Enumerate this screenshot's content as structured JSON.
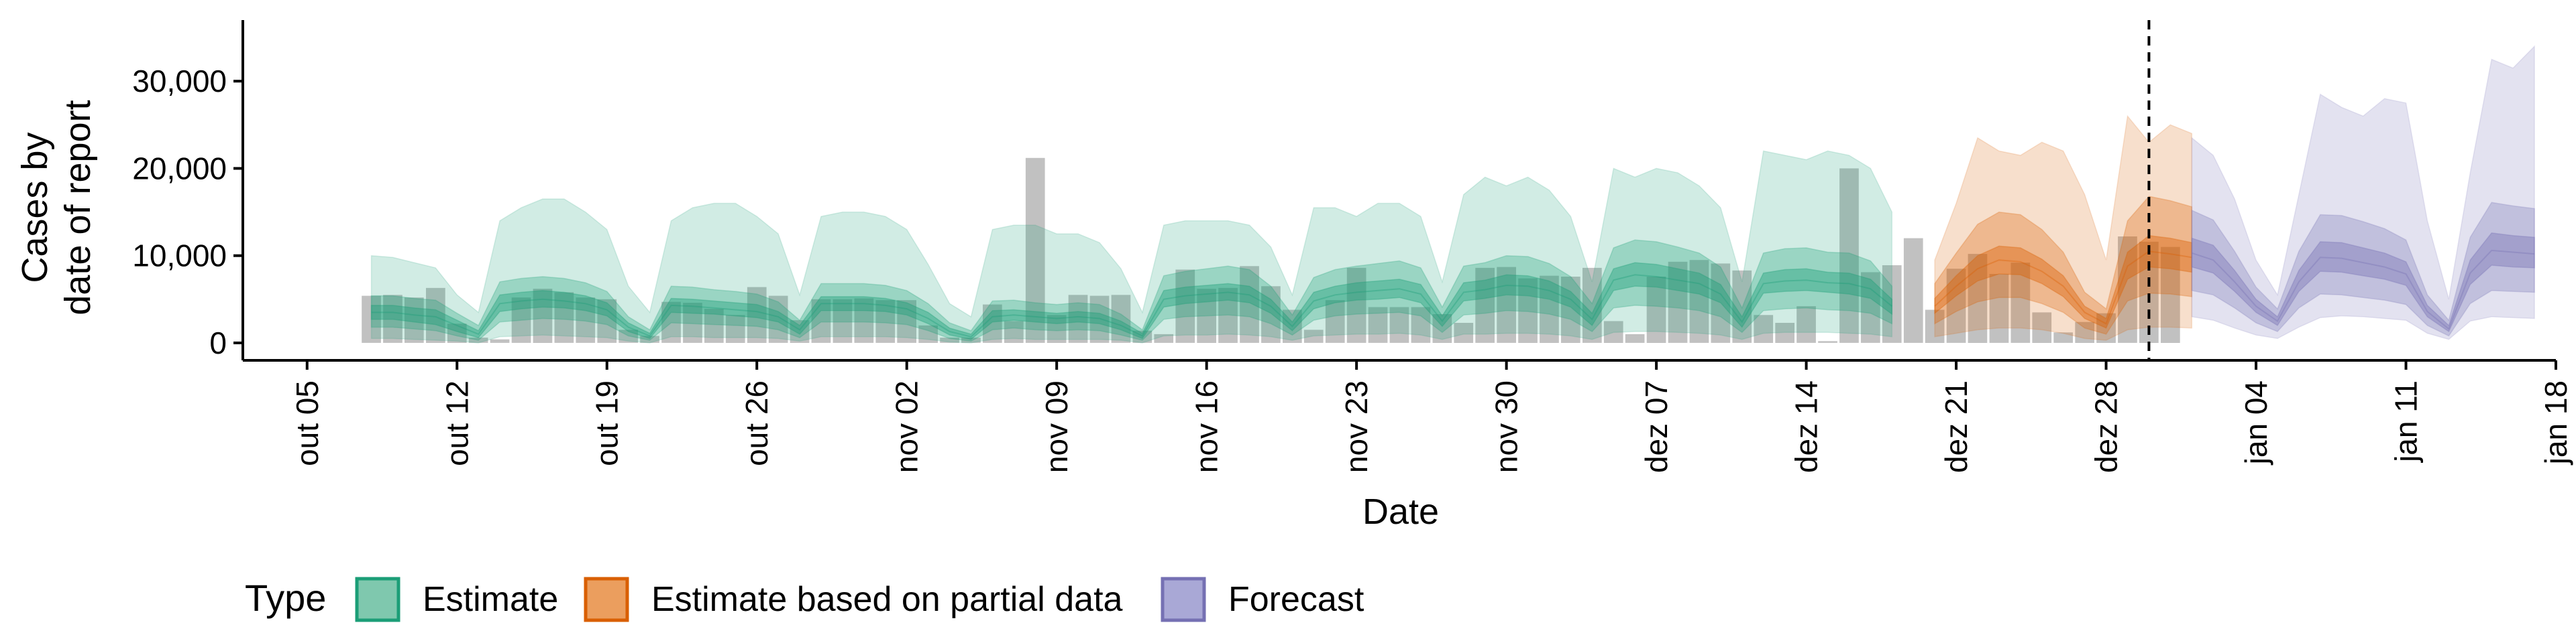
{
  "chart_data": {
    "type": "area",
    "xlabel": "Date",
    "ylabel_lines": [
      "Cases by",
      "date of report"
    ],
    "ylim": [
      -2000,
      37000
    ],
    "yticks": [
      0,
      10000,
      20000,
      30000
    ],
    "ytick_labels": [
      "0",
      "10,000",
      "20,000",
      "30,000"
    ],
    "xlim": [
      "2020-10-02",
      "2021-01-18"
    ],
    "xticks": [
      "2020-10-05",
      "2020-10-12",
      "2020-10-19",
      "2020-10-26",
      "2020-11-02",
      "2020-11-09",
      "2020-11-16",
      "2020-11-23",
      "2020-11-30",
      "2020-12-07",
      "2020-12-14",
      "2020-12-21",
      "2020-12-28",
      "2021-01-04",
      "2021-01-11",
      "2021-01-18"
    ],
    "xtick_labels": [
      "out 05",
      "out 12",
      "out 19",
      "out 26",
      "nov 02",
      "nov 09",
      "nov 16",
      "nov 23",
      "nov 30",
      "dez 07",
      "dez 14",
      "dez 21",
      "dez 28",
      "jan 04",
      "jan 11",
      "jan 18"
    ],
    "forecast_date": "2020-12-30",
    "grid": false,
    "legend": {
      "title": "Type",
      "position": "bottom",
      "items": [
        {
          "label": "Estimate",
          "fill": "#7fc8ae",
          "stroke": "#1b9e77"
        },
        {
          "label": "Estimate based on partial data",
          "fill": "#eb9e5e",
          "stroke": "#d95f02"
        },
        {
          "label": "Forecast",
          "fill": "#a9a8d6",
          "stroke": "#7570b3"
        }
      ]
    },
    "colors": {
      "Estimate": "#1b9e77",
      "Estimate based on partial data": "#d95f02",
      "Forecast": "#7570b3",
      "bars": "#a6a6a6"
    },
    "reported_cases": {
      "start_date": "2020-10-08",
      "values": [
        5400,
        5500,
        5200,
        6300,
        2200,
        600,
        400,
        5200,
        6200,
        5800,
        5200,
        5000,
        1500,
        800,
        4700,
        4600,
        3900,
        3200,
        6400,
        5400,
        2600,
        5000,
        5000,
        5100,
        4900,
        4900,
        2000,
        600,
        600,
        4400,
        2500,
        21200,
        3200,
        5500,
        5400,
        5500,
        1400,
        1000,
        8400,
        6200,
        6300,
        8800,
        6500,
        3800,
        1500,
        4900,
        8600,
        4100,
        4100,
        4100,
        3300,
        2300,
        8600,
        8700,
        7400,
        7700,
        7600,
        8600,
        2500,
        1000,
        7600,
        9300,
        9500,
        9100,
        8300,
        3200,
        2300,
        4200,
        200,
        20000,
        8100,
        8900,
        12000,
        3800,
        8500,
        10200,
        7900,
        9200,
        3500,
        1200,
        2400,
        3400,
        12200,
        11600,
        11000
      ]
    },
    "series": [
      {
        "name": "Estimate",
        "start_date": "2020-10-08",
        "median": [
          3500,
          3500,
          3200,
          3000,
          2000,
          1000,
          4500,
          4800,
          5000,
          4800,
          4500,
          3800,
          1800,
          800,
          4300,
          4200,
          4000,
          3800,
          3600,
          3000,
          1500,
          4500,
          4500,
          4500,
          4300,
          3900,
          2800,
          1300,
          700,
          3000,
          3200,
          3000,
          2800,
          3000,
          2800,
          2000,
          800,
          5000,
          5400,
          5600,
          5800,
          5500,
          4200,
          1900,
          4800,
          5500,
          5800,
          6000,
          6200,
          5600,
          2500,
          5800,
          6100,
          6600,
          6500,
          6000,
          5000,
          2700,
          7200,
          7800,
          7600,
          7200,
          6800,
          5600,
          2400,
          6800,
          7100,
          7200,
          6900,
          6800,
          6200,
          4200
        ],
        "lower50": [
          2700,
          2700,
          2400,
          2100,
          1300,
          600,
          3600,
          3900,
          4100,
          4000,
          3700,
          3100,
          1300,
          500,
          3500,
          3400,
          3300,
          3100,
          2900,
          2400,
          1000,
          3700,
          3700,
          3700,
          3600,
          3200,
          2200,
          900,
          400,
          2400,
          2600,
          2400,
          2200,
          2400,
          2200,
          1500,
          500,
          4100,
          4500,
          4700,
          4900,
          4600,
          3400,
          1400,
          3900,
          4600,
          4900,
          5000,
          5200,
          4600,
          1900,
          4800,
          5100,
          5500,
          5400,
          5000,
          4100,
          2000,
          6000,
          6500,
          6400,
          6000,
          5600,
          4600,
          1800,
          5700,
          5900,
          6000,
          5800,
          5600,
          5100,
          3300
        ],
        "upper50": [
          4300,
          4300,
          4000,
          3800,
          2600,
          1400,
          5500,
          5800,
          6000,
          5800,
          5400,
          4600,
          2300,
          1100,
          5100,
          5000,
          4800,
          4600,
          4400,
          3600,
          2000,
          5300,
          5300,
          5300,
          5100,
          4600,
          3500,
          1700,
          1000,
          3700,
          3800,
          3600,
          3400,
          3600,
          3400,
          2500,
          1100,
          6000,
          6400,
          6600,
          6800,
          6500,
          5000,
          2400,
          5800,
          6500,
          6900,
          7100,
          7300,
          6700,
          3100,
          6900,
          7200,
          7800,
          7700,
          7100,
          5900,
          3400,
          8500,
          9200,
          9000,
          8500,
          8000,
          6700,
          3000,
          8000,
          8400,
          8500,
          8100,
          8000,
          7300,
          5000
        ],
        "lower90": [
          1800,
          1800,
          1600,
          1400,
          800,
          300,
          2400,
          2600,
          2800,
          2700,
          2500,
          2100,
          800,
          300,
          2300,
          2200,
          2100,
          2000,
          1900,
          1500,
          600,
          2400,
          2400,
          2400,
          2300,
          2100,
          1400,
          500,
          200,
          1500,
          1700,
          1500,
          1400,
          1500,
          1400,
          900,
          300,
          2700,
          3000,
          3100,
          3200,
          3000,
          2200,
          900,
          2600,
          3100,
          3300,
          3400,
          3500,
          3100,
          1200,
          3200,
          3400,
          3700,
          3600,
          3300,
          2700,
          1300,
          4000,
          4300,
          4200,
          4000,
          3700,
          3000,
          1200,
          3700,
          3900,
          4000,
          3800,
          3700,
          3400,
          2200
        ],
        "upper90": [
          5400,
          5400,
          5100,
          4900,
          3400,
          2000,
          7000,
          7400,
          7600,
          7400,
          6900,
          5900,
          3000,
          1500,
          6500,
          6400,
          6100,
          5900,
          5600,
          4700,
          2600,
          6800,
          6800,
          6800,
          6600,
          6000,
          4500,
          2300,
          1400,
          4800,
          4900,
          4600,
          4400,
          4600,
          4400,
          3300,
          1500,
          7700,
          8200,
          8500,
          8800,
          8400,
          6500,
          3200,
          7500,
          8400,
          8800,
          9100,
          9400,
          8600,
          4100,
          8800,
          9200,
          10000,
          9900,
          9100,
          7600,
          4500,
          10900,
          11800,
          11600,
          11000,
          10300,
          8700,
          4000,
          10300,
          10800,
          10900,
          10400,
          10300,
          9400,
          6500
        ],
        "lower_full": [
          500,
          500,
          400,
          300,
          200,
          0,
          700,
          800,
          900,
          800,
          700,
          600,
          200,
          0,
          700,
          700,
          600,
          600,
          600,
          500,
          200,
          700,
          700,
          700,
          700,
          600,
          400,
          100,
          0,
          400,
          500,
          400,
          400,
          400,
          400,
          300,
          0,
          800,
          900,
          900,
          1000,
          900,
          700,
          300,
          800,
          900,
          1000,
          1000,
          1100,
          900,
          400,
          1000,
          1000,
          1100,
          1100,
          1000,
          800,
          400,
          1200,
          1300,
          1300,
          1200,
          1100,
          900,
          400,
          1100,
          1200,
          1200,
          1200,
          1100,
          1000,
          700
        ],
        "upper_full": [
          10000,
          9800,
          9200,
          8600,
          5500,
          3500,
          14000,
          15500,
          16500,
          16500,
          15000,
          13000,
          6500,
          3500,
          14000,
          15500,
          16000,
          16000,
          14500,
          12500,
          5500,
          14500,
          15000,
          15000,
          14500,
          13000,
          9000,
          4500,
          3000,
          13000,
          13500,
          13500,
          12500,
          12500,
          11500,
          8500,
          3500,
          13500,
          14000,
          14000,
          14000,
          13500,
          11000,
          5500,
          15500,
          15500,
          14500,
          16000,
          16000,
          14500,
          7000,
          17000,
          19000,
          18000,
          19000,
          17500,
          14500,
          7000,
          20000,
          19000,
          20000,
          19500,
          18000,
          15500,
          7000,
          22000,
          21500,
          21000,
          22000,
          21500,
          20000,
          15000
        ]
      },
      {
        "name": "Estimate based on partial data",
        "start_date": "2020-12-20",
        "median": [
          4200,
          6500,
          8500,
          9500,
          9300,
          8200,
          6500,
          3500,
          2200,
          8800,
          10500,
          10200,
          9800
        ],
        "lower50": [
          3400,
          5400,
          7100,
          7900,
          7800,
          6800,
          5300,
          2800,
          1700,
          7300,
          8700,
          8500,
          8100
        ],
        "upper50": [
          5100,
          7700,
          10000,
          11100,
          10900,
          9600,
          7700,
          4200,
          2800,
          10400,
          12300,
          12000,
          11500
        ],
        "lower90": [
          2200,
          3600,
          4700,
          5200,
          5200,
          4500,
          3500,
          1700,
          1000,
          4800,
          5700,
          5600,
          5300
        ],
        "upper90": [
          6800,
          10300,
          13600,
          15000,
          14700,
          13000,
          10400,
          5800,
          3900,
          14000,
          16800,
          16300,
          15600
        ],
        "lower_full": [
          700,
          1100,
          1500,
          1700,
          1700,
          1500,
          1100,
          500,
          300,
          1500,
          1800,
          1800,
          1700
        ],
        "upper_full": [
          9500,
          16000,
          23500,
          22000,
          21500,
          23000,
          22000,
          17000,
          9500,
          26000,
          23000,
          25000,
          24000
        ]
      },
      {
        "name": "Forecast",
        "start_date": "2021-01-01",
        "median": [
          10300,
          9500,
          7000,
          4200,
          2500,
          7000,
          9800,
          9700,
          9200,
          8700,
          7900,
          3600,
          1600,
          8000,
          10600,
          10400,
          10200
        ],
        "lower50": [
          8700,
          8000,
          5900,
          3500,
          2000,
          5900,
          8200,
          8100,
          7700,
          7300,
          6600,
          3000,
          1300,
          6700,
          8900,
          8700,
          8600
        ],
        "upper50": [
          12000,
          11200,
          8300,
          5000,
          3000,
          8300,
          11600,
          11500,
          10900,
          10300,
          9300,
          4300,
          2000,
          9500,
          12600,
          12300,
          12100
        ],
        "lower90": [
          6000,
          5500,
          4000,
          2300,
          1300,
          4000,
          5600,
          5500,
          5200,
          4900,
          4400,
          2000,
          800,
          4500,
          6000,
          5900,
          5800
        ],
        "upper90": [
          15200,
          14100,
          10500,
          6400,
          3900,
          10500,
          14700,
          14600,
          13900,
          13100,
          11800,
          5500,
          2600,
          12100,
          16100,
          15700,
          15400
        ],
        "lower_full": [
          3000,
          2600,
          1700,
          900,
          500,
          1800,
          2900,
          3100,
          3000,
          2800,
          2600,
          1100,
          400,
          2500,
          3000,
          2900,
          2800
        ],
        "upper_full": [
          23500,
          21500,
          16500,
          9500,
          5500,
          17000,
          28500,
          27000,
          26000,
          28000,
          27500,
          14000,
          5000,
          19500,
          32500,
          31500,
          34000
        ]
      }
    ]
  }
}
